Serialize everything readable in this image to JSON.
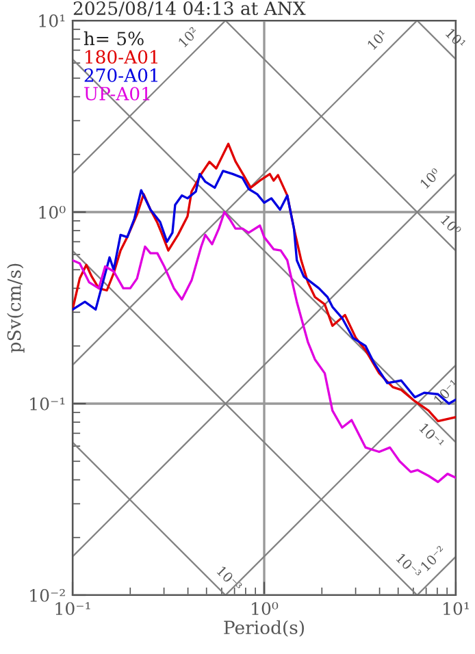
{
  "chart_data": {
    "type": "line",
    "title": "2025/08/14 04:13 at ANX",
    "xlabel": "Period(s)",
    "ylabel": "pSv(cm/s)",
    "legend_title": "h= 5%",
    "log": "xy",
    "grid": true,
    "legend": "top left",
    "xlim": [
      0.1,
      10
    ],
    "ylim": [
      0.01,
      10
    ],
    "xticks": [
      {
        "value": 0.1,
        "label": "10⁻¹"
      },
      {
        "value": 1,
        "label": "10⁰"
      },
      {
        "value": 10,
        "label": "10¹"
      }
    ],
    "yticks": [
      {
        "value": 0.01,
        "label": "10⁻²"
      },
      {
        "value": 0.1,
        "label": "10⁻¹"
      },
      {
        "value": 1,
        "label": "10⁰"
      },
      {
        "value": 10,
        "label": "10¹"
      }
    ],
    "series": [
      {
        "color": "#808080",
        "x": [
          0.1,
          0.628
        ],
        "values": [
          1.59,
          10
        ]
      },
      {
        "color": "#808080",
        "x": [
          0.1,
          6.28
        ],
        "values": [
          0.159,
          10
        ]
      },
      {
        "color": "#808080",
        "x": [
          0.1,
          10
        ],
        "values": [
          0.0159,
          1.59
        ]
      },
      {
        "color": "#808080",
        "x": [
          0.628,
          10
        ],
        "values": [
          0.01,
          0.159
        ]
      },
      {
        "color": "#808080",
        "x": [
          6.28,
          10
        ],
        "values": [
          0.01,
          0.0159
        ]
      },
      {
        "color": "#808080",
        "x": [
          6.28,
          10
        ],
        "values": [
          10,
          6.28
        ]
      },
      {
        "color": "#808080",
        "x": [
          0.628,
          10
        ],
        "values": [
          10,
          0.628
        ]
      },
      {
        "color": "#808080",
        "x": [
          0.1,
          10
        ],
        "values": [
          6.28,
          0.0628
        ]
      },
      {
        "color": "#808080",
        "x": [
          0.1,
          6.28
        ],
        "values": [
          0.628,
          0.01
        ]
      },
      {
        "color": "#808080",
        "x": [
          0.1,
          0.628
        ],
        "values": [
          0.0628,
          0.01
        ]
      },
      {
        "name": "180-A01",
        "color": "#e00000",
        "x": [
          0.1,
          0.109,
          0.118,
          0.126,
          0.137,
          0.151,
          0.164,
          0.178,
          0.193,
          0.217,
          0.235,
          0.255,
          0.277,
          0.291,
          0.316,
          0.355,
          0.398,
          0.418,
          0.469,
          0.518,
          0.562,
          0.65,
          0.708,
          0.78,
          0.85,
          0.95,
          1.07,
          1.12,
          1.18,
          1.32,
          1.43,
          1.56,
          1.69,
          1.84,
          2.07,
          2.27,
          2.64,
          3.01,
          3.38,
          3.98,
          4.69,
          5.19,
          6.11,
          7.2,
          8.07,
          10
        ],
        "values": [
          0.31,
          0.45,
          0.53,
          0.46,
          0.4,
          0.39,
          0.48,
          0.63,
          0.74,
          0.97,
          1.24,
          1.03,
          0.88,
          0.78,
          0.63,
          0.76,
          0.95,
          1.28,
          1.58,
          1.83,
          1.69,
          2.27,
          1.84,
          1.56,
          1.34,
          1.46,
          1.58,
          1.46,
          1.56,
          1.22,
          0.82,
          0.56,
          0.43,
          0.36,
          0.33,
          0.255,
          0.29,
          0.22,
          0.19,
          0.144,
          0.122,
          0.118,
          0.103,
          0.092,
          0.081,
          0.085
        ]
      },
      {
        "name": "270-A01",
        "color": "#0000e0",
        "x": [
          0.1,
          0.116,
          0.132,
          0.144,
          0.156,
          0.164,
          0.178,
          0.193,
          0.21,
          0.228,
          0.255,
          0.286,
          0.311,
          0.332,
          0.343,
          0.372,
          0.398,
          0.44,
          0.461,
          0.493,
          0.552,
          0.61,
          0.686,
          0.77,
          0.83,
          0.92,
          1.0,
          1.09,
          1.21,
          1.32,
          1.43,
          1.48,
          1.61,
          1.93,
          2.14,
          2.27,
          2.55,
          2.91,
          3.38,
          3.73,
          4.39,
          5.19,
          6.11,
          6.86,
          8.07,
          9.2,
          10
        ],
        "values": [
          0.31,
          0.34,
          0.31,
          0.43,
          0.58,
          0.5,
          0.76,
          0.74,
          0.92,
          1.3,
          1.03,
          0.89,
          0.7,
          0.78,
          1.09,
          1.22,
          1.18,
          1.28,
          1.58,
          1.44,
          1.34,
          1.64,
          1.58,
          1.51,
          1.32,
          1.24,
          1.12,
          1.18,
          1.03,
          1.22,
          0.82,
          0.56,
          0.46,
          0.4,
          0.36,
          0.32,
          0.28,
          0.22,
          0.2,
          0.164,
          0.128,
          0.132,
          0.108,
          0.114,
          0.112,
          0.1,
          0.105
        ]
      },
      {
        "name": "UP-A01",
        "color": "#e000e0",
        "x": [
          0.1,
          0.109,
          0.122,
          0.137,
          0.148,
          0.164,
          0.184,
          0.2,
          0.217,
          0.239,
          0.255,
          0.277,
          0.301,
          0.338,
          0.372,
          0.418,
          0.469,
          0.493,
          0.535,
          0.58,
          0.62,
          0.66,
          0.708,
          0.77,
          0.83,
          0.95,
          1.0,
          1.12,
          1.22,
          1.32,
          1.48,
          1.69,
          1.84,
          2.07,
          2.27,
          2.55,
          2.86,
          3.38,
          3.98,
          4.53,
          5.09,
          5.82,
          6.31,
          7.2,
          8.07,
          9.05,
          10
        ],
        "values": [
          0.56,
          0.54,
          0.43,
          0.4,
          0.52,
          0.49,
          0.4,
          0.4,
          0.45,
          0.66,
          0.61,
          0.61,
          0.52,
          0.4,
          0.35,
          0.44,
          0.66,
          0.76,
          0.68,
          0.82,
          1.0,
          0.92,
          0.82,
          0.82,
          0.78,
          0.85,
          0.74,
          0.64,
          0.63,
          0.56,
          0.34,
          0.21,
          0.17,
          0.144,
          0.092,
          0.075,
          0.082,
          0.059,
          0.056,
          0.059,
          0.05,
          0.044,
          0.045,
          0.042,
          0.039,
          0.043,
          0.041
        ]
      }
    ],
    "annotations": [
      {
        "text": "10²",
        "x": 0.454,
        "y": 7.22
      },
      {
        "text": "10¹",
        "x": 4.4,
        "y": 7.0
      },
      {
        "text": "10¹",
        "x": 8.8,
        "y": 7.14
      },
      {
        "text": "10⁰",
        "x": 8.3,
        "y": 1.32
      },
      {
        "text": "10⁰",
        "x": 8.3,
        "y": 0.757
      },
      {
        "text": "10⁻¹",
        "x": 8.0,
        "y": 0.127
      },
      {
        "text": "10⁻¹",
        "x": 8.3,
        "y": 0.0757
      },
      {
        "text": "10⁻³",
        "x": 0.58,
        "y": 0.0108
      },
      {
        "text": "10⁻³",
        "x": 5.0,
        "y": 0.0126
      },
      {
        "text": "10⁻²",
        "x": 8.6,
        "y": 0.0137
      }
    ]
  }
}
